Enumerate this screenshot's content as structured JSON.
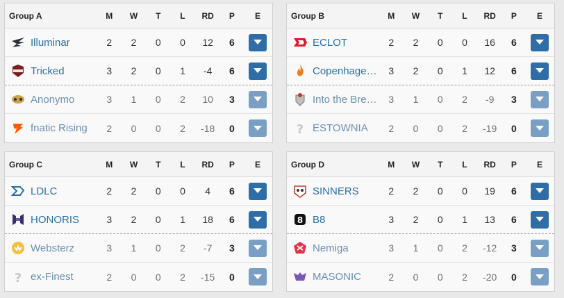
{
  "columns": {
    "m": "M",
    "w": "W",
    "t": "T",
    "l": "L",
    "rd": "RD",
    "p": "P",
    "e": "E"
  },
  "groups": [
    {
      "title": "Group A",
      "teams": [
        {
          "name": "Illuminar",
          "m": "2",
          "w": "2",
          "t": "0",
          "l": "0",
          "rd": "12",
          "p": "6",
          "logo": "illuminar-logo-icon"
        },
        {
          "name": "Tricked",
          "m": "3",
          "w": "2",
          "t": "0",
          "l": "1",
          "rd": "-4",
          "p": "6",
          "logo": "tricked-logo-icon"
        },
        {
          "name": "Anonymo",
          "m": "3",
          "w": "1",
          "t": "0",
          "l": "2",
          "rd": "10",
          "p": "3",
          "logo": "anonymo-logo-icon"
        },
        {
          "name": "fnatic Rising",
          "m": "2",
          "w": "0",
          "t": "0",
          "l": "2",
          "rd": "-18",
          "p": "0",
          "logo": "fnatic-logo-icon"
        }
      ]
    },
    {
      "title": "Group B",
      "teams": [
        {
          "name": "ECLOT",
          "m": "2",
          "w": "2",
          "t": "0",
          "l": "0",
          "rd": "16",
          "p": "6",
          "logo": "eclot-logo-icon"
        },
        {
          "name": "Copenhagen ...",
          "m": "3",
          "w": "2",
          "t": "0",
          "l": "1",
          "rd": "12",
          "p": "6",
          "logo": "copenhagen-flames-logo-icon"
        },
        {
          "name": "Into the Brea...",
          "m": "3",
          "w": "1",
          "t": "0",
          "l": "2",
          "rd": "-9",
          "p": "3",
          "logo": "into-the-breach-logo-icon"
        },
        {
          "name": "ESTOWNIA",
          "m": "2",
          "w": "0",
          "t": "0",
          "l": "2",
          "rd": "-19",
          "p": "0",
          "logo": "unknown-team-icon"
        }
      ]
    },
    {
      "title": "Group C",
      "teams": [
        {
          "name": "LDLC",
          "m": "2",
          "w": "2",
          "t": "0",
          "l": "0",
          "rd": "4",
          "p": "6",
          "logo": "ldlc-logo-icon"
        },
        {
          "name": "HONORIS",
          "m": "3",
          "w": "2",
          "t": "0",
          "l": "1",
          "rd": "18",
          "p": "6",
          "logo": "honoris-logo-icon"
        },
        {
          "name": "Websterz",
          "m": "3",
          "w": "1",
          "t": "0",
          "l": "2",
          "rd": "-7",
          "p": "3",
          "logo": "websterz-logo-icon"
        },
        {
          "name": "ex-Finest",
          "m": "2",
          "w": "0",
          "t": "0",
          "l": "2",
          "rd": "-15",
          "p": "0",
          "logo": "unknown-team-icon"
        }
      ]
    },
    {
      "title": "Group D",
      "teams": [
        {
          "name": "SINNERS",
          "m": "2",
          "w": "2",
          "t": "0",
          "l": "0",
          "rd": "19",
          "p": "6",
          "logo": "sinners-logo-icon"
        },
        {
          "name": "B8",
          "m": "3",
          "w": "2",
          "t": "0",
          "l": "1",
          "rd": "13",
          "p": "6",
          "logo": "b8-logo-icon"
        },
        {
          "name": "Nemiga",
          "m": "3",
          "w": "1",
          "t": "0",
          "l": "2",
          "rd": "-12",
          "p": "3",
          "logo": "nemiga-logo-icon"
        },
        {
          "name": "MASONIC",
          "m": "2",
          "w": "0",
          "t": "0",
          "l": "2",
          "rd": "-20",
          "p": "0",
          "logo": "masonic-logo-icon"
        }
      ]
    }
  ],
  "colors": {
    "button": "#2f6da7",
    "button_faded": "#7a9fc4",
    "link": "#2c6fa6"
  }
}
